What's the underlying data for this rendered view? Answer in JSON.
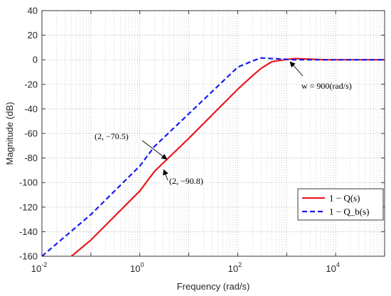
{
  "chart_data": {
    "type": "line",
    "x_scale": "log",
    "xlim": [
      0.01,
      100000
    ],
    "ylim": [
      -160,
      40
    ],
    "xlabel": "Frequency  (rad/s)",
    "ylabel": "Magnitude (dB)",
    "grid": true,
    "minor_grid": true,
    "legend_position": "bottom-right",
    "y_ticks": [
      40,
      20,
      0,
      -20,
      -40,
      -60,
      -80,
      -100,
      -120,
      -140,
      -160
    ],
    "y_tick_labels": [
      "40",
      "20",
      "0",
      "-20",
      "-40",
      "-60",
      "-80",
      "-100",
      "-120",
      "-140",
      "-160"
    ],
    "x_ticks": [
      {
        "base": "10",
        "exp": "-2",
        "value": 0.01
      },
      {
        "base": "10",
        "exp": "0",
        "value": 1
      },
      {
        "base": "10",
        "exp": "2",
        "value": 100
      },
      {
        "base": "10",
        "exp": "4",
        "value": 10000
      }
    ],
    "series": [
      {
        "name": "1 − Q(s)",
        "color": "#e8191c",
        "style": "solid",
        "x": [
          0.04,
          0.1,
          1,
          2,
          10,
          100,
          200,
          300,
          500,
          900,
          1500,
          3000,
          6000,
          10000,
          30000,
          100000
        ],
        "y": [
          -160,
          -146.8,
          -106.8,
          -90.8,
          -64,
          -24,
          -13,
          -7,
          -1.5,
          0,
          1,
          0.5,
          0,
          0,
          0,
          0
        ]
      },
      {
        "name": "1 − Q_b(s)",
        "color": "#1a1aee",
        "style": "dashed",
        "x": [
          0.01,
          0.1,
          1,
          2,
          10,
          100,
          200,
          300,
          500,
          900,
          1500,
          3000,
          10000,
          100000
        ],
        "y": [
          -160,
          -126,
          -86.5,
          -70.5,
          -44,
          -6,
          -1,
          1.5,
          1,
          0.5,
          0,
          0,
          0,
          0
        ]
      }
    ],
    "annotations": [
      {
        "text": "(2, −70.5)",
        "x": 2,
        "y": -70.5
      },
      {
        "text": "(2, −90.8)",
        "x": 2,
        "y": -90.8
      },
      {
        "text": "w = 900(rad/s)",
        "x": 900,
        "y": 0
      }
    ]
  }
}
